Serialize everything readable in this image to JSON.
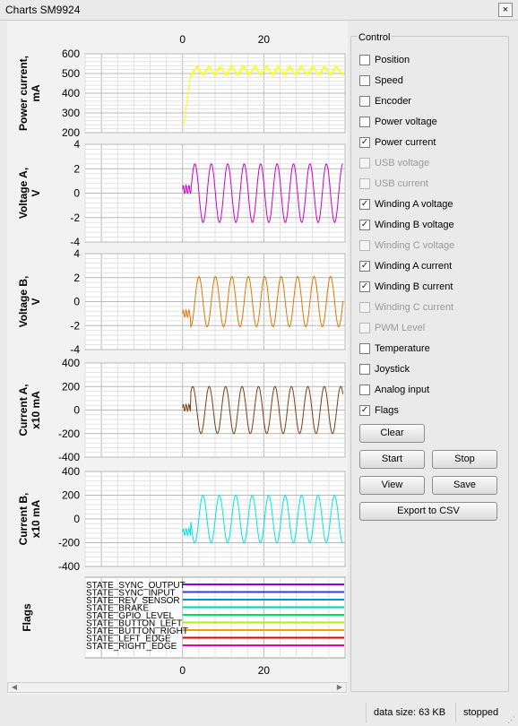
{
  "window": {
    "title": "Charts SM9924",
    "close_glyph": "×"
  },
  "x_axis": {
    "ticks": [
      0,
      20
    ],
    "range": [
      -24,
      40
    ]
  },
  "charts": [
    {
      "label1": "Power current,",
      "label2": "mA",
      "yticks": [
        600,
        500,
        400,
        300,
        200
      ],
      "ylim": [
        200,
        600
      ],
      "color": "#ffff00"
    },
    {
      "label1": "Voltage A,",
      "label2": "V",
      "yticks": [
        4,
        2,
        0,
        -2,
        -4
      ],
      "ylim": [
        -4,
        4
      ],
      "color": "#cc00cc"
    },
    {
      "label1": "Voltage B,",
      "label2": "V",
      "yticks": [
        4,
        2,
        0,
        -2,
        -4
      ],
      "ylim": [
        -4,
        4
      ],
      "color": "#dd7700"
    },
    {
      "label1": "Current A,",
      "label2": "x10 mA",
      "yticks": [
        400,
        200,
        0,
        -200,
        -400
      ],
      "ylim": [
        -400,
        400
      ],
      "color": "#7a3f10"
    },
    {
      "label1": "Current B,",
      "label2": "x10 mA",
      "yticks": [
        400,
        200,
        0,
        -200,
        -400
      ],
      "ylim": [
        -400,
        400
      ],
      "color": "#00e5e5"
    }
  ],
  "flags_chart": {
    "label": "Flags",
    "items": [
      {
        "name": "STATE_SYNC_OUTPUT",
        "color": "#8a00e6"
      },
      {
        "name": "STATE_SYNC_INPUT",
        "color": "#2e3ee0"
      },
      {
        "name": "STATE_REV_SENSOR",
        "color": "#0090e0"
      },
      {
        "name": "STATE_BRAKE",
        "color": "#00d0b0"
      },
      {
        "name": "STATE_GPIO_LEVEL",
        "color": "#00e060"
      },
      {
        "name": "STATE_BUTTON_LEFT",
        "color": "#b0f000"
      },
      {
        "name": "STATE_BUTTON_RIGHT",
        "color": "#f0a000"
      },
      {
        "name": "STATE_LEFT_EDGE",
        "color": "#e00000"
      },
      {
        "name": "STATE_RIGHT_EDGE",
        "color": "#e000c0"
      }
    ]
  },
  "control": {
    "title": "Control",
    "items": [
      {
        "label": "Position",
        "checked": false,
        "enabled": true
      },
      {
        "label": "Speed",
        "checked": false,
        "enabled": true
      },
      {
        "label": "Encoder",
        "checked": false,
        "enabled": true
      },
      {
        "label": "Power voltage",
        "checked": false,
        "enabled": true
      },
      {
        "label": "Power current",
        "checked": true,
        "enabled": true
      },
      {
        "label": "USB voltage",
        "checked": false,
        "enabled": false
      },
      {
        "label": "USB current",
        "checked": false,
        "enabled": false
      },
      {
        "label": "Winding A voltage",
        "checked": true,
        "enabled": true
      },
      {
        "label": "Winding B voltage",
        "checked": true,
        "enabled": true
      },
      {
        "label": "Winding C voltage",
        "checked": false,
        "enabled": false
      },
      {
        "label": "Winding A current",
        "checked": true,
        "enabled": true
      },
      {
        "label": "Winding B current",
        "checked": true,
        "enabled": true
      },
      {
        "label": "Winding C current",
        "checked": false,
        "enabled": false
      },
      {
        "label": "PWM Level",
        "checked": false,
        "enabled": false
      },
      {
        "label": "Temperature",
        "checked": false,
        "enabled": true
      },
      {
        "label": "Joystick",
        "checked": false,
        "enabled": true
      },
      {
        "label": "Analog input",
        "checked": false,
        "enabled": true
      },
      {
        "label": "Flags",
        "checked": true,
        "enabled": true
      }
    ],
    "check_glyph": "✓",
    "clear_label": "Clear",
    "start_label": "Start",
    "stop_label": "Stop",
    "view_label": "View",
    "save_label": "Save",
    "export_label": "Export to CSV"
  },
  "status": {
    "data_size": "data size: 63 KB",
    "state": "stopped"
  },
  "scroll": {
    "left_glyph": "◀",
    "right_glyph": "▶"
  },
  "grip_glyph": "⋰"
}
